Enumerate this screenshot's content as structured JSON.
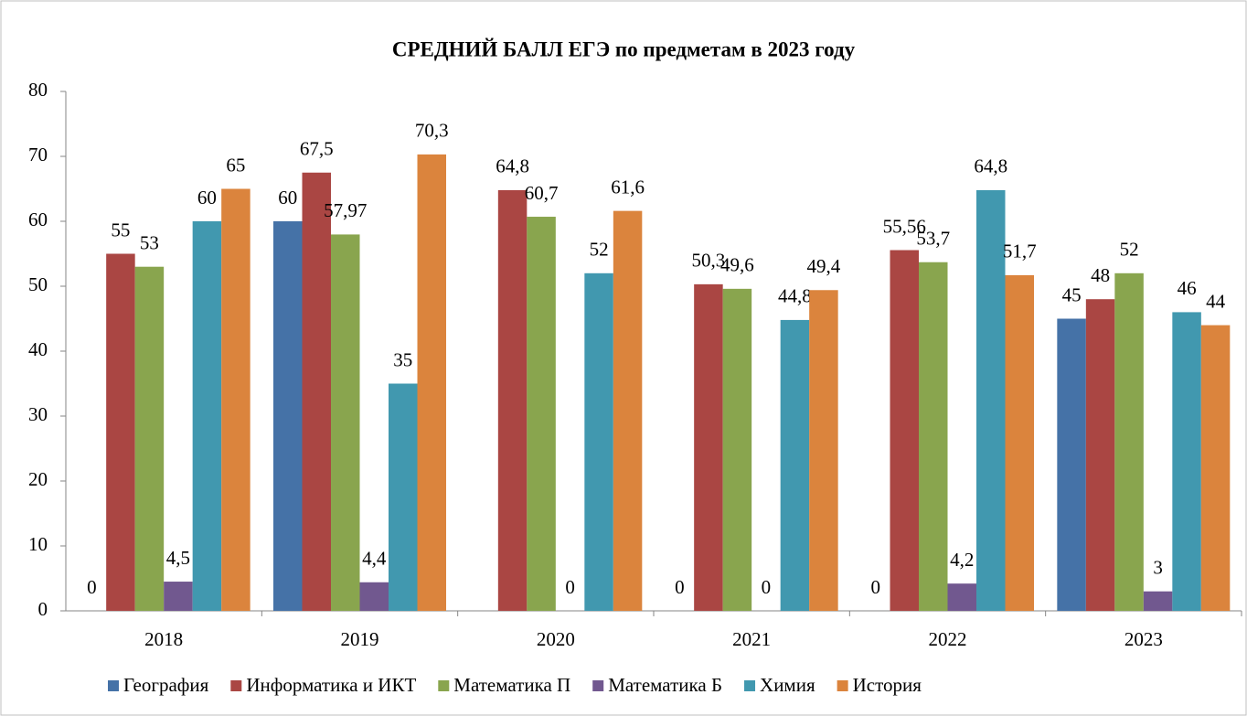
{
  "chart_data": {
    "type": "bar",
    "title": "СРЕДНИЙ БАЛЛ  ЕГЭ  по предметам  в 2023 году",
    "categories": [
      "2018",
      "2019",
      "2020",
      "2021",
      "2022",
      "2023"
    ],
    "ylim": [
      0,
      80
    ],
    "yticks": [
      0,
      10,
      20,
      30,
      40,
      50,
      60,
      70,
      80
    ],
    "legend": "bottom",
    "series": [
      {
        "name": "География",
        "color": "#4572a7",
        "values": [
          0,
          60,
          null,
          0,
          0,
          45
        ],
        "value_labels": [
          "0",
          "60",
          null,
          "0",
          "0",
          "45"
        ]
      },
      {
        "name": "Информатика и ИКТ",
        "color": "#aa4643",
        "values": [
          55,
          67.5,
          64.8,
          50.3,
          55.56,
          48
        ],
        "value_labels": [
          "55",
          "67,5",
          "64,8",
          "50,3",
          "55,56",
          "48"
        ]
      },
      {
        "name": "Математика П",
        "color": "#89a54e",
        "values": [
          53,
          57.97,
          60.7,
          49.6,
          53.7,
          52
        ],
        "value_labels": [
          "53",
          "57,97",
          "60,7",
          "49,6",
          "53,7",
          "52"
        ]
      },
      {
        "name": "Математика Б",
        "color": "#71588f",
        "values": [
          4.5,
          4.4,
          0,
          0,
          4.2,
          3
        ],
        "value_labels": [
          "4,5",
          "4,4",
          "0",
          "0",
          "4,2",
          "3"
        ]
      },
      {
        "name": "Химия",
        "color": "#4198af",
        "values": [
          60,
          35,
          52,
          44.8,
          64.8,
          46
        ],
        "value_labels": [
          "60",
          "35",
          "52",
          "44,8",
          "64,8",
          "46"
        ]
      },
      {
        "name": "История",
        "color": "#db843d",
        "values": [
          65,
          70.3,
          61.6,
          49.4,
          51.7,
          44
        ],
        "value_labels": [
          "65",
          "70,3",
          "61,6",
          "49,4",
          "51,7",
          "44"
        ]
      }
    ]
  }
}
